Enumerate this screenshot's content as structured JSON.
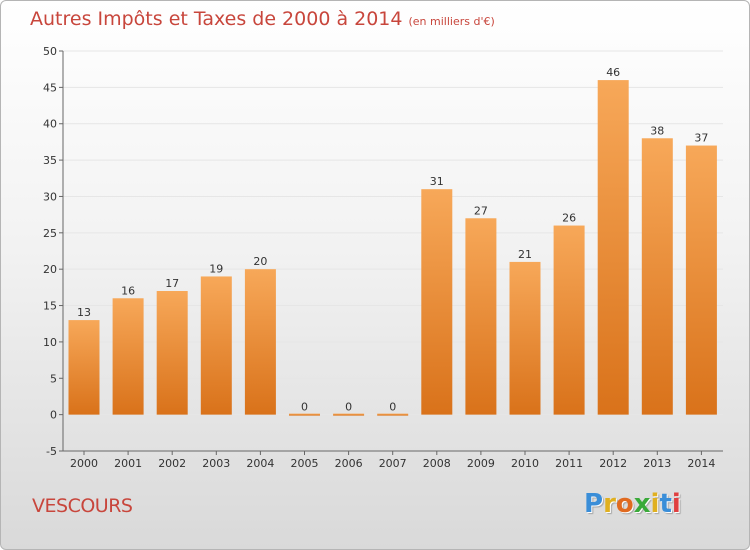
{
  "title": "Autres Impôts et Taxes de 2000 à 2014",
  "subtitle": "(en milliers d'€)",
  "commune": "VESCOURS",
  "logo": {
    "letters": [
      "P",
      "r",
      "o",
      "x",
      "i",
      "t",
      "i"
    ],
    "colors": [
      "#3a8ed8",
      "#e0b020",
      "#e06a20",
      "#3aaa3a",
      "#e0b020",
      "#3a8ed8",
      "#e04040"
    ]
  },
  "colors": {
    "bar_light": "#f7a859",
    "bar_dark": "#d9721a",
    "title": "#c8463c",
    "grid": "#e6e6e6",
    "axis": "#666666"
  },
  "chart_data": {
    "type": "bar",
    "title": "Autres Impôts et Taxes de 2000 à 2014",
    "subtitle": "(en milliers d'€)",
    "xlabel": "",
    "ylabel": "",
    "categories": [
      "2000",
      "2001",
      "2002",
      "2003",
      "2004",
      "2005",
      "2006",
      "2007",
      "2008",
      "2009",
      "2010",
      "2011",
      "2012",
      "2013",
      "2014"
    ],
    "values": [
      13,
      16,
      17,
      19,
      20,
      0,
      0,
      0,
      31,
      27,
      21,
      26,
      46,
      38,
      37
    ],
    "ylim": [
      -5,
      50
    ],
    "yticks": [
      -5,
      0,
      5,
      10,
      15,
      20,
      25,
      30,
      35,
      40,
      45,
      50
    ],
    "grid": "horizontal",
    "data_labels": true
  }
}
